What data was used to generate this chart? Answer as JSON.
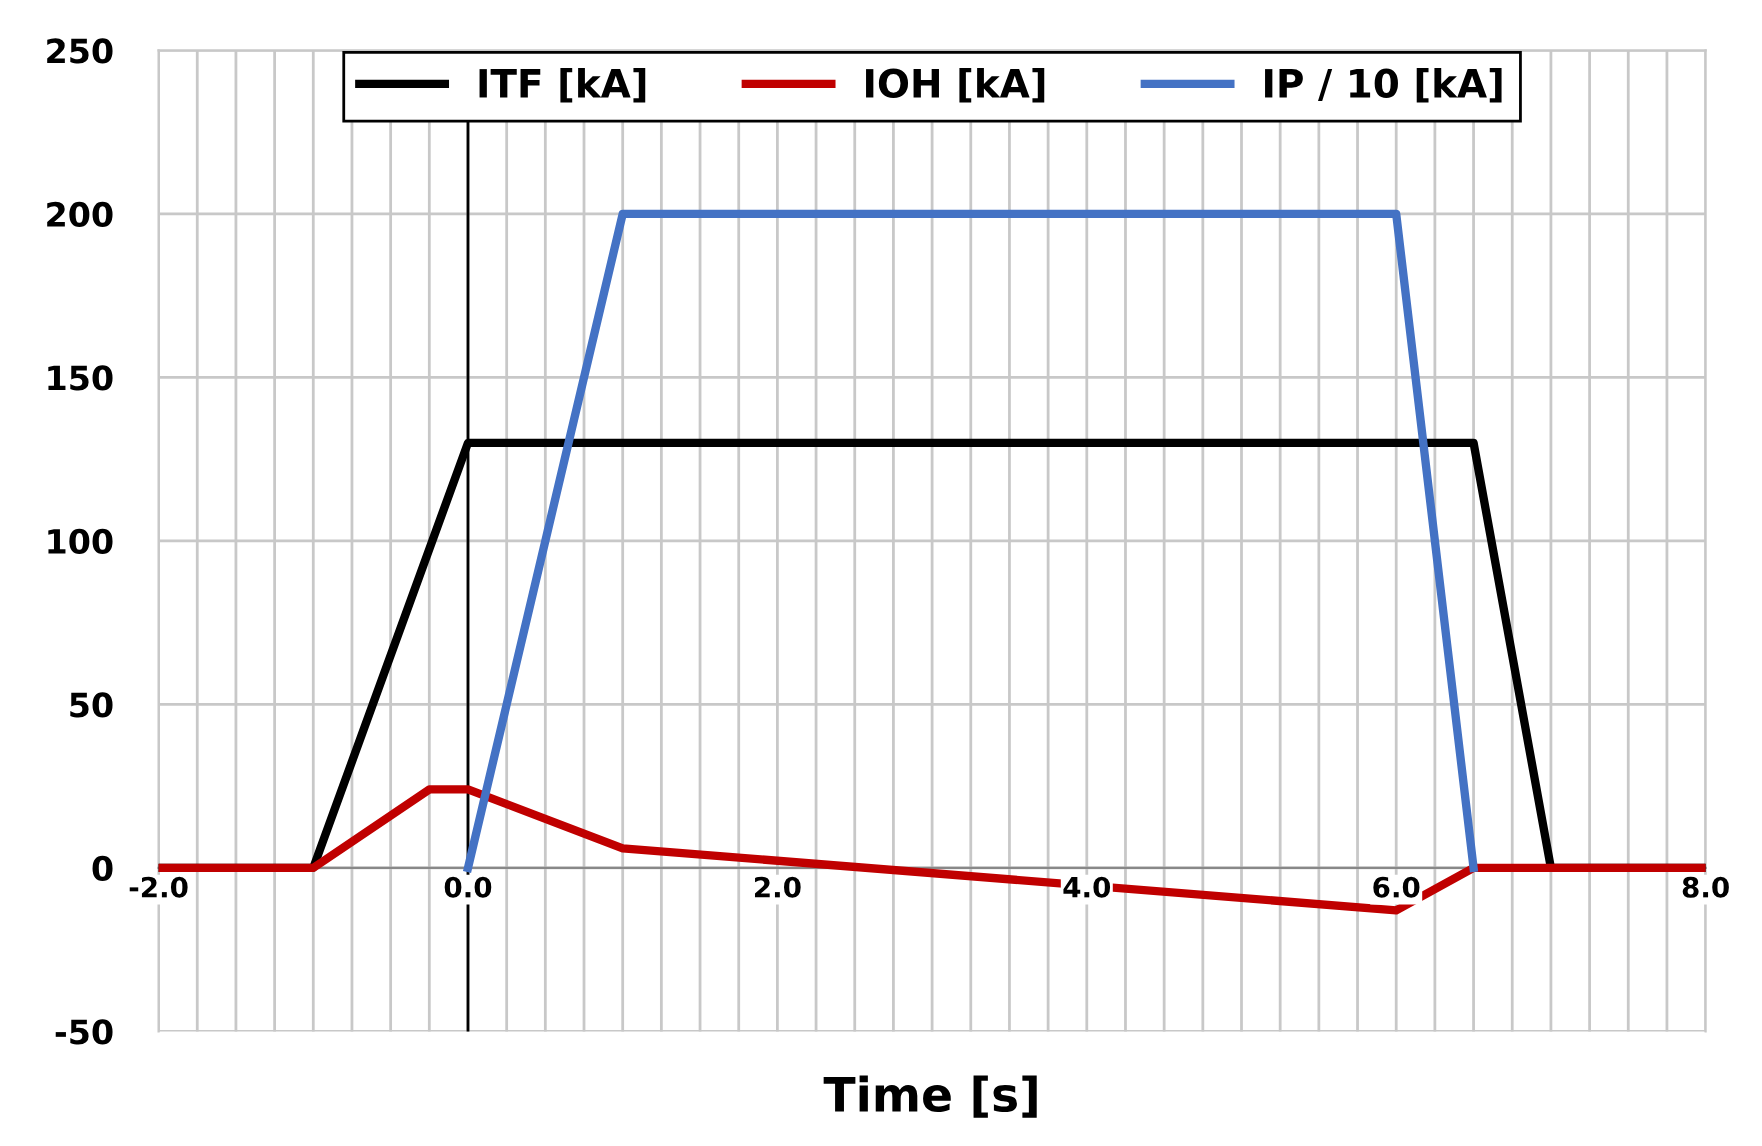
{
  "chart_data": {
    "type": "line",
    "xlabel": "Time [s]",
    "xlim": [
      -2,
      8
    ],
    "ylim": [
      -50,
      250
    ],
    "xticks": [
      {
        "value": -2,
        "label": "-2.0"
      },
      {
        "value": -1.75,
        "label": null
      },
      {
        "value": -1.5,
        "label": null
      },
      {
        "value": -1.25,
        "label": null
      },
      {
        "value": -1,
        "label": null
      },
      {
        "value": -0.75,
        "label": null
      },
      {
        "value": -0.5,
        "label": null
      },
      {
        "value": -0.25,
        "label": null
      },
      {
        "value": 0,
        "label": "0.0"
      },
      {
        "value": 0.25,
        "label": null
      },
      {
        "value": 0.5,
        "label": null
      },
      {
        "value": 0.75,
        "label": null
      },
      {
        "value": 1,
        "label": null
      },
      {
        "value": 1.25,
        "label": null
      },
      {
        "value": 1.5,
        "label": null
      },
      {
        "value": 1.75,
        "label": null
      },
      {
        "value": 2,
        "label": "2.0"
      },
      {
        "value": 2.25,
        "label": null
      },
      {
        "value": 2.5,
        "label": null
      },
      {
        "value": 2.75,
        "label": null
      },
      {
        "value": 3,
        "label": null
      },
      {
        "value": 3.25,
        "label": null
      },
      {
        "value": 3.5,
        "label": null
      },
      {
        "value": 3.75,
        "label": null
      },
      {
        "value": 4,
        "label": "4.0"
      },
      {
        "value": 4.25,
        "label": null
      },
      {
        "value": 4.5,
        "label": null
      },
      {
        "value": 4.75,
        "label": null
      },
      {
        "value": 5,
        "label": null
      },
      {
        "value": 5.25,
        "label": null
      },
      {
        "value": 5.5,
        "label": null
      },
      {
        "value": 5.75,
        "label": null
      },
      {
        "value": 6,
        "label": "6.0"
      },
      {
        "value": 6.25,
        "label": null
      },
      {
        "value": 6.5,
        "label": null
      },
      {
        "value": 6.75,
        "label": null
      },
      {
        "value": 7,
        "label": null
      },
      {
        "value": 7.25,
        "label": null
      },
      {
        "value": 7.5,
        "label": null
      },
      {
        "value": 7.75,
        "label": null
      },
      {
        "value": 8,
        "label": "8.0"
      }
    ],
    "yticks": [
      -50,
      0,
      50,
      100,
      150,
      200,
      250
    ],
    "grid": true,
    "legend": "top",
    "marker": "none",
    "line_style": "solid",
    "ref_lines": [
      {
        "axis": "x",
        "value": 0,
        "color": "#000000"
      }
    ],
    "series": [
      {
        "name": "ITF [kA]",
        "color": "#000000",
        "x": [
          -2,
          -1,
          0,
          6.5,
          7,
          8
        ],
        "values": [
          0,
          0,
          130,
          130,
          0,
          0
        ]
      },
      {
        "name": "IOH [kA]",
        "color": "#c00000",
        "x": [
          -2,
          -1,
          -0.25,
          0,
          1,
          6,
          6.5,
          8
        ],
        "values": [
          0,
          0,
          24,
          24,
          6,
          -13,
          0,
          0
        ]
      },
      {
        "name": "IP / 10 [kA]",
        "color": "#4472c4",
        "x": [
          0,
          1,
          6,
          6.5
        ],
        "values": [
          0,
          200,
          200,
          0
        ]
      }
    ]
  }
}
